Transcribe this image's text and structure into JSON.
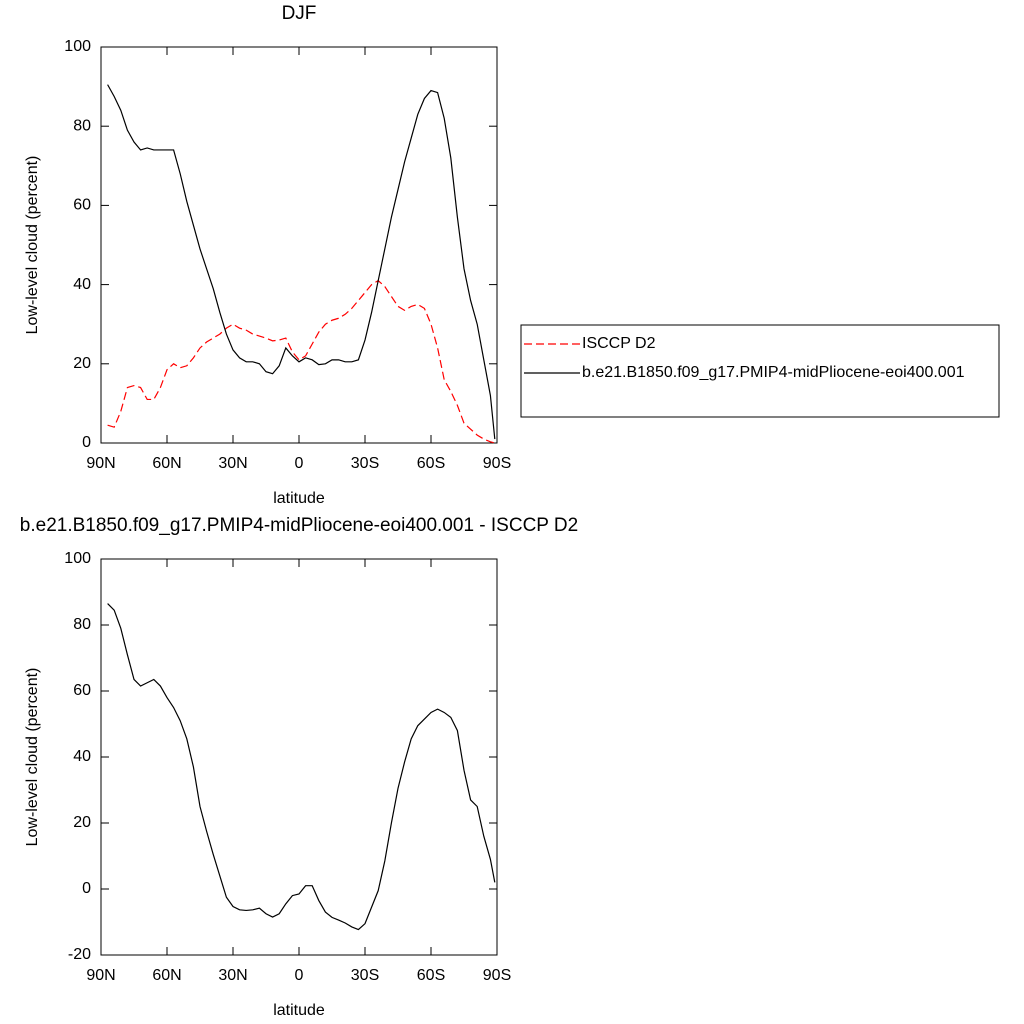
{
  "chart_data": [
    {
      "type": "line",
      "title": "DJF",
      "xlabel": "latitude",
      "ylabel": "Low-level cloud (percent)",
      "x": [
        87,
        84,
        81,
        78,
        75,
        72,
        69,
        66,
        63,
        60,
        57,
        54,
        51,
        48,
        45,
        42,
        39,
        36,
        33,
        30,
        27,
        24,
        21,
        18,
        15,
        12,
        9,
        6,
        3,
        0,
        -3,
        -6,
        -9,
        -12,
        -15,
        -18,
        -21,
        -24,
        -27,
        -30,
        -33,
        -36,
        -39,
        -42,
        -45,
        -48,
        -51,
        -54,
        -57,
        -60,
        -63,
        -66,
        -69,
        -72,
        -75,
        -78,
        -81,
        -84,
        -87,
        -89
      ],
      "series": [
        {
          "name": "ISCCP D2",
          "color": "#ff0000",
          "dashed": true,
          "values": [
            4.5,
            4,
            8,
            14,
            14.5,
            14,
            11,
            11,
            14,
            18.5,
            20,
            19,
            19.5,
            21.5,
            24,
            25.5,
            26.5,
            27.5,
            29,
            30,
            29,
            28.5,
            27.5,
            27,
            26.5,
            25.8,
            26,
            26.5,
            23,
            21,
            22,
            25,
            28,
            30,
            31,
            31.5,
            32.5,
            34,
            36,
            38,
            40,
            41,
            39.5,
            37,
            34.5,
            33.5,
            34.5,
            35,
            34,
            30,
            24,
            16,
            13,
            9.5,
            5,
            3.5,
            2,
            1,
            0.3,
            0
          ]
        },
        {
          "name": "b.e21.B1850.f09_g17.PMIP4-midPliocene-eoi400.001",
          "color": "#000000",
          "dashed": false,
          "values": [
            90.5,
            87.5,
            84,
            79,
            76,
            74,
            74.5,
            74,
            74,
            74,
            74,
            68,
            61,
            55,
            49,
            44,
            39,
            33,
            27.5,
            23.5,
            21.5,
            20.5,
            20.5,
            20,
            18,
            17.5,
            19.5,
            24,
            22,
            20.5,
            21.5,
            21,
            19.8,
            20,
            21,
            21,
            20.5,
            20.5,
            21,
            26,
            33,
            41,
            49,
            57,
            64,
            71,
            77,
            83,
            87,
            89,
            88.5,
            82,
            72,
            57,
            44,
            36,
            30,
            21,
            12,
            1
          ]
        }
      ],
      "xlim": [
        90,
        -90
      ],
      "xticks": [
        {
          "value": 90,
          "label": "90N"
        },
        {
          "value": 60,
          "label": "60N"
        },
        {
          "value": 30,
          "label": "30N"
        },
        0,
        {
          "value": -30,
          "label": "30S"
        },
        {
          "value": -60,
          "label": "60S"
        },
        {
          "value": -90,
          "label": "90S"
        }
      ],
      "ylim": [
        0,
        100
      ],
      "yticks": [
        0,
        20,
        40,
        60,
        80,
        100
      ],
      "legend": "right"
    },
    {
      "type": "line",
      "title": "b.e21.B1850.f09_g17.PMIP4-midPliocene-eoi400.001 - ISCCP D2",
      "xlabel": "latitude",
      "ylabel": "Low-level cloud (percent)",
      "x": [
        87,
        84,
        81,
        78,
        75,
        72,
        69,
        66,
        63,
        60,
        57,
        54,
        51,
        48,
        45,
        42,
        39,
        36,
        33,
        30,
        27,
        24,
        21,
        18,
        15,
        12,
        9,
        6,
        3,
        0,
        -3,
        -6,
        -9,
        -12,
        -15,
        -18,
        -21,
        -24,
        -27,
        -30,
        -33,
        -36,
        -39,
        -42,
        -45,
        -48,
        -51,
        -54,
        -57,
        -60,
        -63,
        -66,
        -69,
        -72,
        -75,
        -78,
        -81,
        -84,
        -87,
        -89
      ],
      "series": [
        {
          "color": "#000000",
          "dashed": false,
          "values": [
            86.5,
            84.5,
            79,
            71,
            63.5,
            61.5,
            62.5,
            63.5,
            61.5,
            58,
            55,
            51,
            45.5,
            37,
            25,
            17.5,
            10.5,
            4,
            -2.5,
            -5.3,
            -6.3,
            -6.5,
            -6.3,
            -5.8,
            -7.5,
            -8.5,
            -7.5,
            -4.5,
            -2,
            -1.5,
            1,
            1,
            -3.5,
            -7,
            -8.6,
            -9.4,
            -10.3,
            -11.5,
            -12.3,
            -10.5,
            -5.5,
            -0.5,
            8.5,
            20,
            30.5,
            38.5,
            45.5,
            49.5,
            51.5,
            53.5,
            54.5,
            53.5,
            52,
            48,
            36,
            27,
            25,
            16,
            9,
            2
          ]
        }
      ],
      "xlim": [
        90,
        -90
      ],
      "xticks": [
        {
          "value": 90,
          "label": "90N"
        },
        {
          "value": 60,
          "label": "60N"
        },
        {
          "value": 30,
          "label": "30N"
        },
        0,
        {
          "value": -30,
          "label": "30S"
        },
        {
          "value": -60,
          "label": "60S"
        },
        {
          "value": -90,
          "label": "90S"
        }
      ],
      "ylim": [
        -20,
        100
      ],
      "yticks": [
        -20,
        0,
        20,
        40,
        60,
        80,
        100
      ]
    }
  ]
}
